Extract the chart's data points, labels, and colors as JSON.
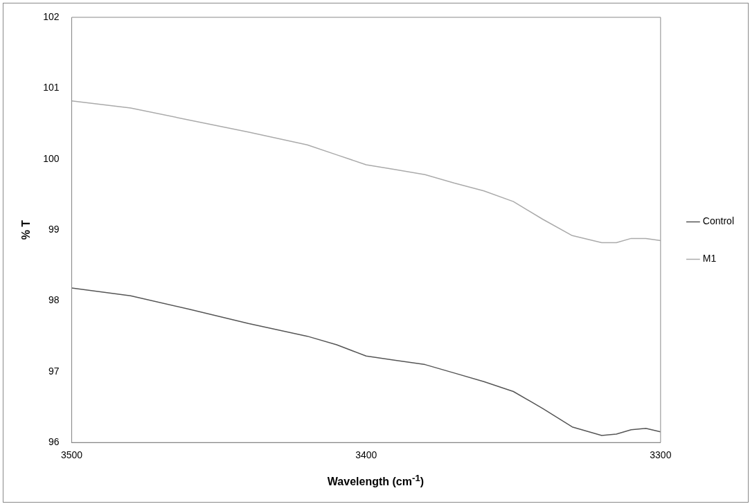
{
  "chart_data": {
    "type": "line",
    "xlabel": "Wavelength (cm$^{-1}$)",
    "ylabel": "% T",
    "xlim": [
      3500,
      3300
    ],
    "xticks": [
      3500,
      3400,
      3300
    ],
    "ylim": [
      96,
      102
    ],
    "yticks": [
      96,
      97,
      98,
      99,
      100,
      101,
      102
    ],
    "grid": false,
    "legend": "right",
    "marker": "none",
    "line_style": "solid",
    "series": [
      {
        "name": "Control",
        "color": "#555555",
        "x": [
          3500,
          3480,
          3460,
          3440,
          3420,
          3410,
          3400,
          3390,
          3380,
          3370,
          3360,
          3350,
          3340,
          3330,
          3320,
          3315,
          3310,
          3305,
          3300
        ],
        "values": [
          98.18,
          98.07,
          97.88,
          97.68,
          97.5,
          97.38,
          97.22,
          97.16,
          97.1,
          96.98,
          96.86,
          96.72,
          96.48,
          96.22,
          96.1,
          96.12,
          96.18,
          96.2,
          96.15
        ]
      },
      {
        "name": "M1",
        "color": "#aaaaaa",
        "x": [
          3500,
          3480,
          3460,
          3440,
          3420,
          3410,
          3400,
          3390,
          3380,
          3370,
          3360,
          3350,
          3340,
          3330,
          3320,
          3315,
          3310,
          3305,
          3300
        ],
        "values": [
          100.82,
          100.72,
          100.55,
          100.38,
          100.2,
          100.06,
          99.92,
          99.85,
          99.78,
          99.66,
          99.55,
          99.4,
          99.15,
          98.92,
          98.82,
          98.82,
          98.88,
          98.88,
          98.85
        ]
      }
    ]
  }
}
